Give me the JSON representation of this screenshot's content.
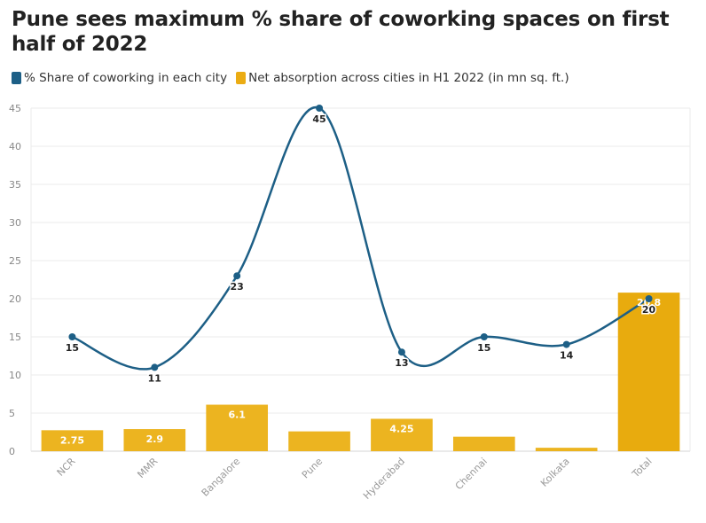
{
  "title": "Pune sees maximum % share of coworking spaces on first half of 2022",
  "legend": [
    {
      "label": "% Share of coworking in each city",
      "color": "#1d5f86"
    },
    {
      "label": "Net absorption across cities in H1 2022 (in mn sq. ft.)",
      "color": "#ebac13"
    }
  ],
  "chart_data": {
    "type": "bar",
    "categories": [
      "NCR",
      "MMR",
      "Bangalore",
      "Pune",
      "Hyderabad",
      "Chennai",
      "Kolkata",
      "Total"
    ],
    "series": [
      {
        "name": "% Share of coworking in each city",
        "type": "line",
        "values": [
          15,
          11,
          23,
          45,
          13,
          15,
          14,
          20
        ],
        "color": "#1d5f86"
      },
      {
        "name": "Net absorption across cities in H1 2022 (in mn sq. ft.)",
        "type": "bar",
        "values": [
          2.75,
          2.9,
          6.1,
          2.6,
          4.25,
          1.9,
          0.45,
          20.8
        ],
        "color": "#ebac13",
        "labels": [
          "2.75",
          "2.9",
          "6.1",
          "",
          "4.25",
          "",
          "",
          "20.8"
        ]
      }
    ],
    "ylim": [
      0,
      45
    ],
    "yticks": [
      0,
      5,
      10,
      15,
      20,
      25,
      30,
      35,
      40,
      45
    ],
    "grid": true,
    "legend_position": "top-left"
  }
}
